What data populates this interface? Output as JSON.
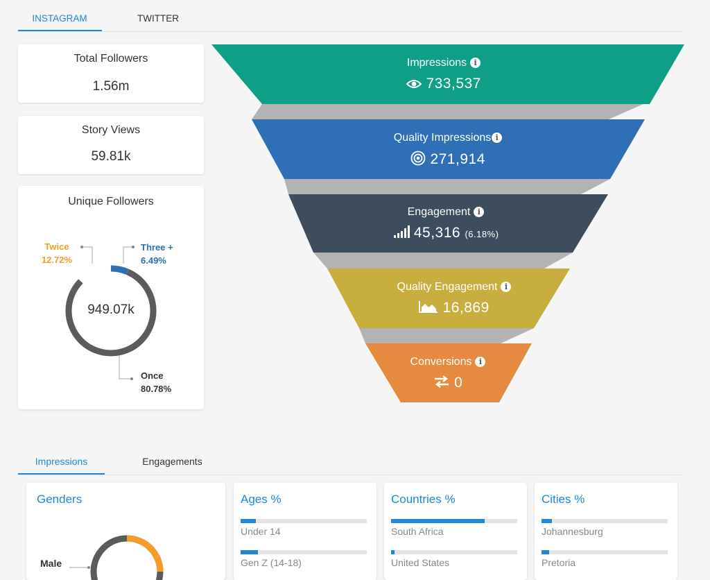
{
  "top_tabs": {
    "active": "INSTAGRAM",
    "other": "TWITTER"
  },
  "stats": {
    "total_followers": {
      "title": "Total Followers",
      "value": "1.56m"
    },
    "story_views": {
      "title": "Story Views",
      "value": "59.81k"
    }
  },
  "unique_followers": {
    "title": "Unique Followers",
    "center": "949.07k",
    "segments": [
      {
        "name": "Twice",
        "pct": "12.72%",
        "value": 12.72,
        "color": "#f39c2b"
      },
      {
        "name": "Three +",
        "pct": "6.49%",
        "value": 6.49,
        "color": "#2f6fb5"
      },
      {
        "name": "Once",
        "pct": "80.78%",
        "value": 80.78,
        "color": "#5b5b5b"
      }
    ]
  },
  "funnel": [
    {
      "title": "Impressions",
      "icon": "eye-icon",
      "value": "733,537",
      "pct": "",
      "color": "#0f9f86"
    },
    {
      "title": "Quality Impressions",
      "icon": "broadcast-icon",
      "value": "271,914",
      "pct": "",
      "color": "#2f6fb5"
    },
    {
      "title": "Engagement",
      "icon": "signal-bars-icon",
      "value": "45,316",
      "pct": "(6.18%)",
      "color": "#3d4d5e"
    },
    {
      "title": "Quality Engagement",
      "icon": "area-chart-icon",
      "value": "16,869",
      "pct": "",
      "color": "#c8ad3f"
    },
    {
      "title": "Conversions",
      "icon": "exchange-arrows-icon",
      "value": "0",
      "pct": "",
      "color": "#e58a3e"
    }
  ],
  "bottom_tabs": {
    "active": "Impressions",
    "other": "Engagements"
  },
  "genders": {
    "title": "Genders",
    "label": "Male"
  },
  "ages": {
    "title": "Ages %",
    "rows": [
      {
        "label": "Under 14",
        "value": 12
      },
      {
        "label": "Gen Z (14-18)",
        "value": 14
      }
    ]
  },
  "countries": {
    "title": "Countries %",
    "rows": [
      {
        "label": "South Africa",
        "value": 74
      },
      {
        "label": "United States",
        "value": 3
      }
    ]
  },
  "cities": {
    "title": "Cities %",
    "rows": [
      {
        "label": "Johannesburg",
        "value": 8
      },
      {
        "label": "Pretoria",
        "value": 6
      }
    ]
  }
}
